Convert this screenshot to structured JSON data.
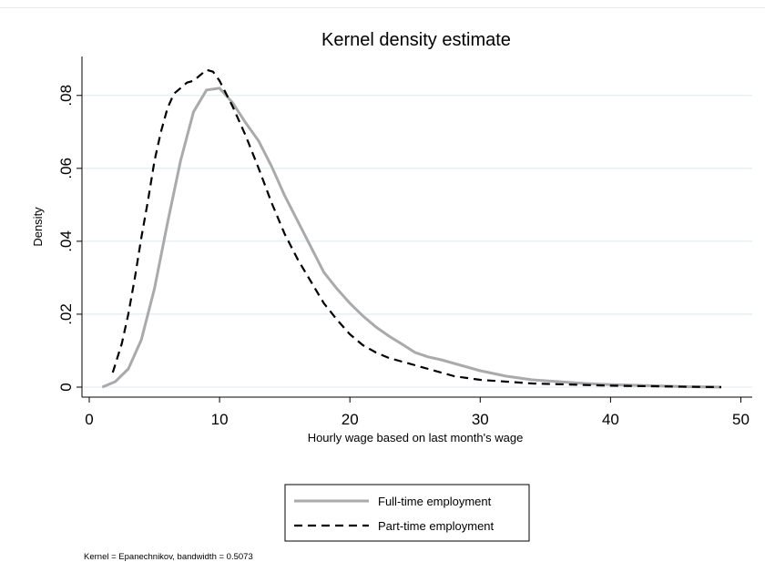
{
  "chart_data": {
    "type": "line",
    "title": "Kernel density estimate",
    "xlabel": "Hourly wage based on last month's wage",
    "ylabel": "Density",
    "xlim": [
      0,
      50
    ],
    "ylim": [
      0,
      0.09
    ],
    "xticks": [
      0,
      10,
      20,
      30,
      40,
      50
    ],
    "xtick_labels": [
      "0",
      "10",
      "20",
      "30",
      "40",
      "50"
    ],
    "yticks": [
      0,
      0.02,
      0.04,
      0.06,
      0.08
    ],
    "ytick_labels": [
      "0",
      ".02",
      ".04",
      ".06",
      ".08"
    ],
    "grid": true,
    "legend_position": "bottom",
    "note": "Kernel = Epanechnikov, bandwidth = 0.5073",
    "series": [
      {
        "name": "Full-time employment",
        "color": "#aaaaaa",
        "style": "solid",
        "x": [
          1.0,
          2.0,
          3.0,
          4.0,
          5.0,
          6.0,
          7.0,
          8.0,
          9.0,
          10.0,
          11.0,
          12.0,
          13.0,
          14.0,
          15.0,
          16.0,
          17.0,
          18.0,
          19.0,
          20.0,
          21.0,
          22.0,
          23.0,
          24.0,
          25.0,
          26.0,
          27.0,
          28.0,
          29.0,
          30.0,
          32.0,
          34.0,
          36.0,
          38.0,
          40.0,
          42.0,
          44.0,
          46.0,
          48.5
        ],
        "y": [
          0.0,
          0.0015,
          0.005,
          0.013,
          0.027,
          0.045,
          0.062,
          0.0755,
          0.0815,
          0.082,
          0.078,
          0.0725,
          0.0675,
          0.0605,
          0.0525,
          0.0455,
          0.0385,
          0.0315,
          0.027,
          0.023,
          0.0195,
          0.0165,
          0.014,
          0.0118,
          0.0095,
          0.0083,
          0.0075,
          0.0065,
          0.0055,
          0.0045,
          0.003,
          0.002,
          0.0015,
          0.001,
          0.0007,
          0.0005,
          0.0003,
          0.0001,
          0.0
        ]
      },
      {
        "name": "Part-time employment",
        "color": "#000000",
        "style": "dashed",
        "x": [
          1.8,
          2.5,
          3.0,
          3.5,
          4.0,
          4.5,
          5.0,
          5.5,
          6.0,
          6.5,
          7.0,
          7.5,
          8.0,
          8.5,
          9.0,
          9.5,
          10.0,
          11.0,
          12.0,
          13.0,
          14.0,
          15.0,
          16.0,
          17.0,
          18.0,
          19.0,
          20.0,
          21.0,
          22.0,
          23.0,
          24.0,
          25.0,
          26.0,
          27.0,
          28.0,
          29.0,
          30.0,
          32.0,
          34.0,
          36.0,
          38.0,
          40.0,
          42.0,
          44.0,
          46.0,
          48.5
        ],
        "y": [
          0.004,
          0.012,
          0.02,
          0.03,
          0.041,
          0.051,
          0.062,
          0.07,
          0.0765,
          0.0805,
          0.082,
          0.0835,
          0.084,
          0.0855,
          0.087,
          0.0865,
          0.084,
          0.077,
          0.069,
          0.06,
          0.0505,
          0.042,
          0.035,
          0.029,
          0.023,
          0.0185,
          0.0145,
          0.0115,
          0.0095,
          0.008,
          0.007,
          0.006,
          0.005,
          0.004,
          0.003,
          0.0025,
          0.002,
          0.0015,
          0.001,
          0.0008,
          0.0006,
          0.0004,
          0.0003,
          0.0002,
          0.0001,
          0.0
        ]
      }
    ]
  }
}
